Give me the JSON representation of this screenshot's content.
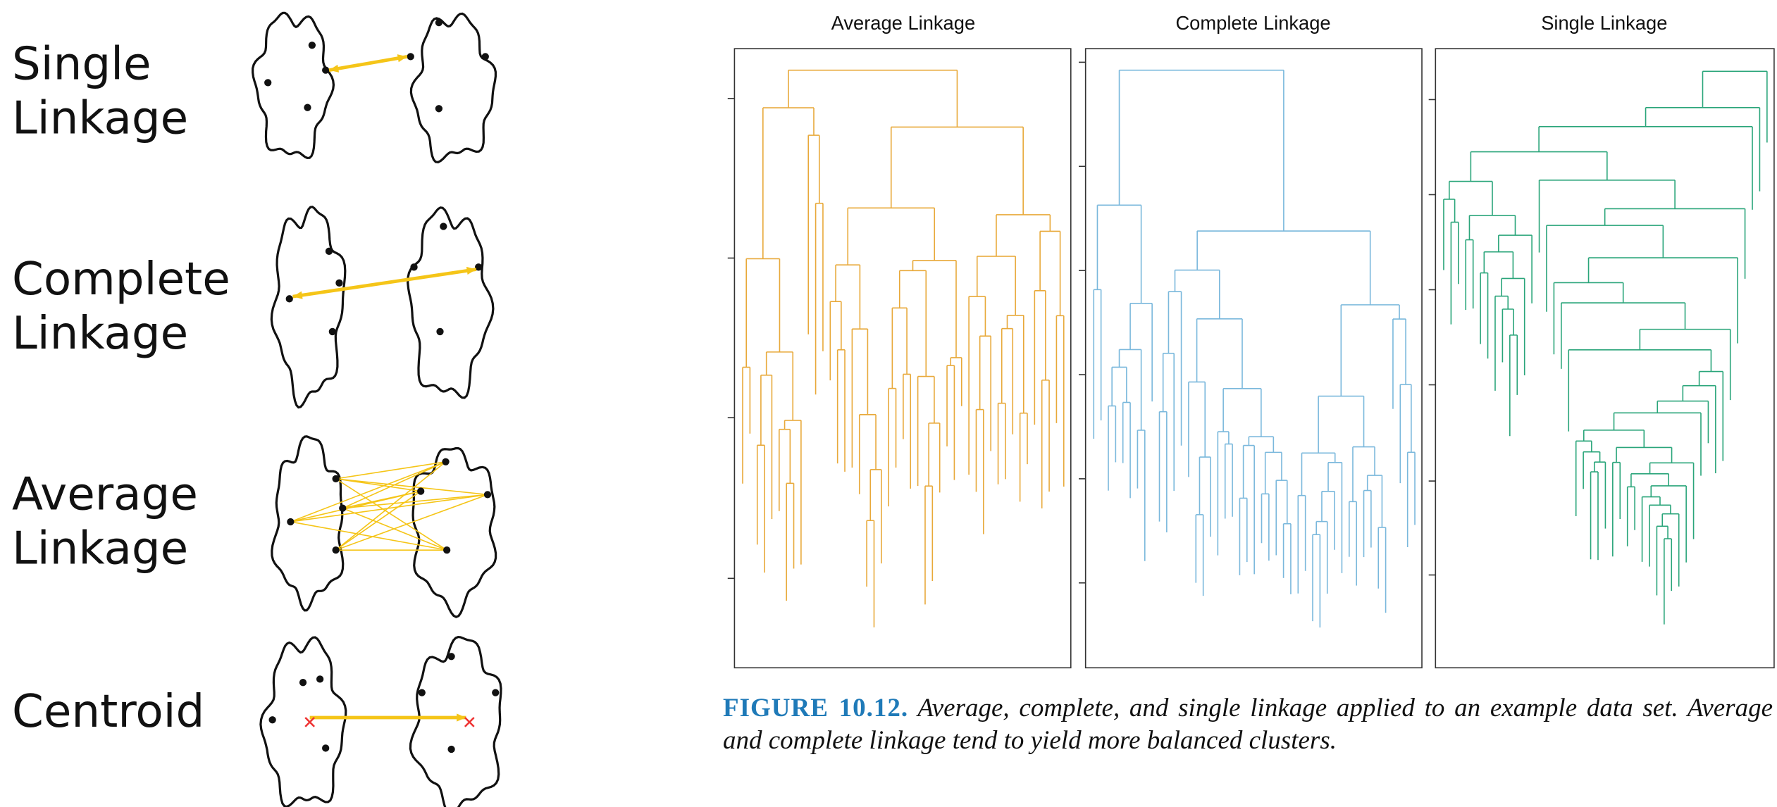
{
  "linkage_types": [
    [
      "Single",
      "Linkage"
    ],
    [
      "Complete",
      "Linkage"
    ],
    [
      "Average",
      "Linkage"
    ],
    [
      "Centroid"
    ]
  ],
  "dendrogram_panels": [
    {
      "title": "Average Linkage"
    },
    {
      "title": "Complete Linkage"
    },
    {
      "title": "Single Linkage"
    }
  ],
  "caption": {
    "label": "FIGURE 10.12.",
    "text": "Average, complete, and single linkage applied to an example data set. Average and complete linkage tend to yield more balanced clusters."
  }
}
